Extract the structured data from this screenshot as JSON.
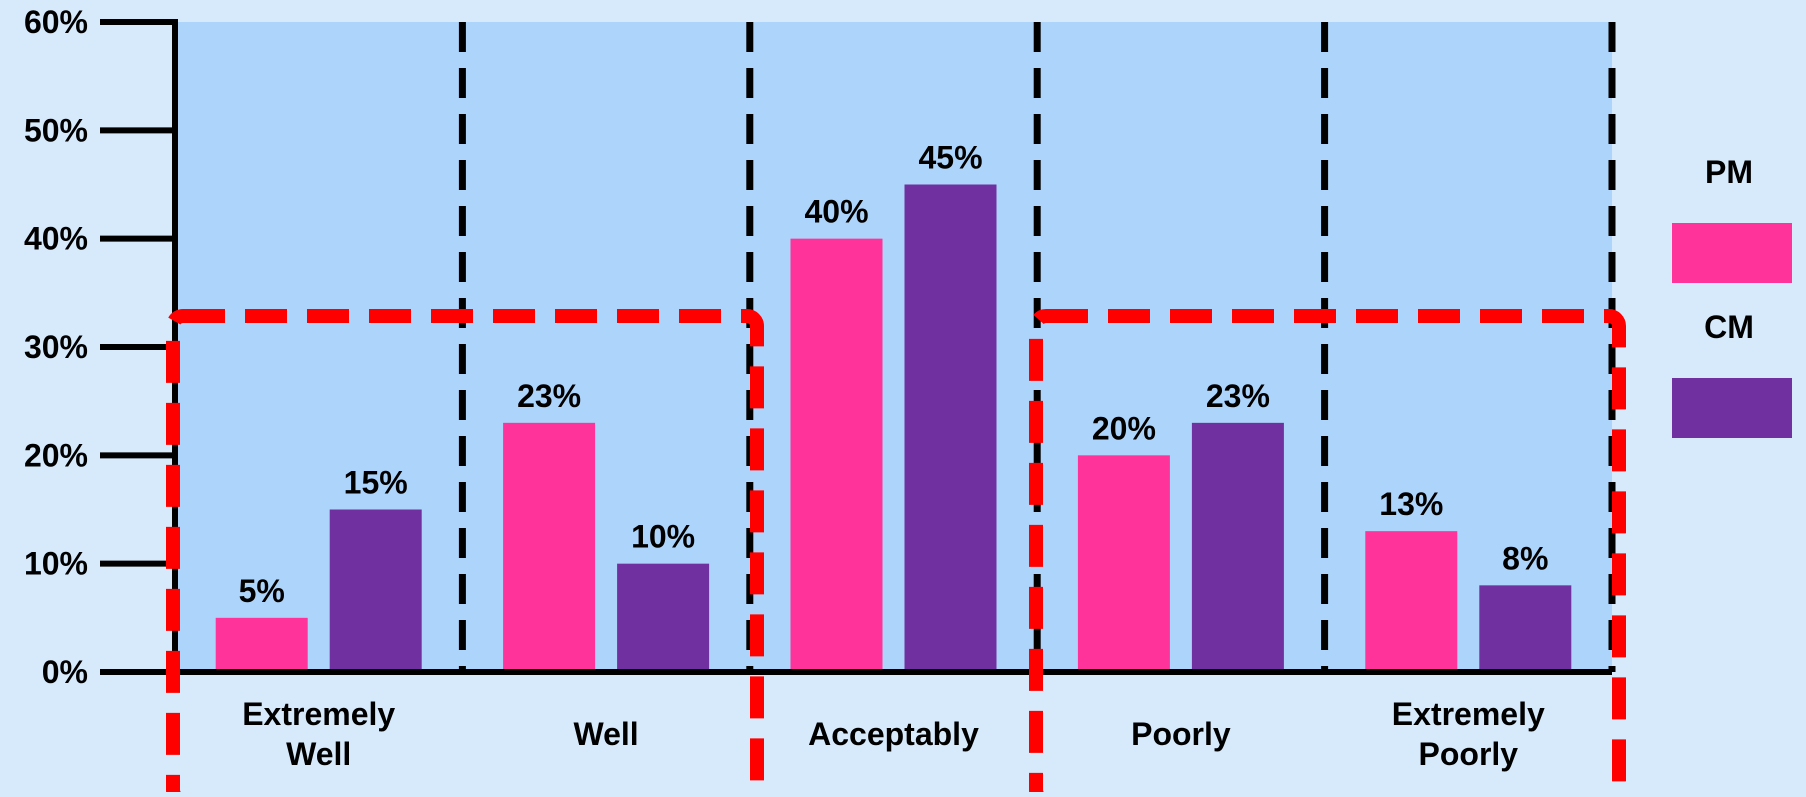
{
  "chart_data": {
    "type": "bar",
    "categories": [
      "Extremely Well",
      "Well",
      "Acceptably",
      "Poorly",
      "Extremely Poorly"
    ],
    "category_lines": [
      [
        "Extremely",
        "Well"
      ],
      [
        "Well"
      ],
      [
        "Acceptably"
      ],
      [
        "Poorly"
      ],
      [
        "Extremely",
        "Poorly"
      ]
    ],
    "series": [
      {
        "name": "PM",
        "color": "#ff3399",
        "values": [
          5,
          23,
          40,
          20,
          13
        ],
        "labels": [
          "5%",
          "23%",
          "40%",
          "20%",
          "13%"
        ]
      },
      {
        "name": "CM",
        "color": "#7030a0",
        "values": [
          15,
          10,
          45,
          23,
          8
        ],
        "labels": [
          "15%",
          "10%",
          "45%",
          "23%",
          "8%"
        ]
      }
    ],
    "ylim": [
      0,
      60
    ],
    "yticks": [
      0,
      10,
      20,
      30,
      40,
      50,
      60
    ],
    "ytick_labels": [
      "0%",
      "10%",
      "20%",
      "30%",
      "40%",
      "50%",
      "60%"
    ],
    "xlabel": "",
    "ylabel": "",
    "title": "",
    "grid": false,
    "category_separators": "dashed",
    "legend_position": "right",
    "highlight_groups": [
      {
        "categories": [
          "Extremely Well",
          "Well"
        ],
        "color": "#ff0000",
        "style": "dashed"
      },
      {
        "categories": [
          "Poorly",
          "Extremely Poorly"
        ],
        "color": "#ff0000",
        "style": "dashed"
      }
    ],
    "plot_background": "#add5fb",
    "page_background": "#d6eafc"
  }
}
